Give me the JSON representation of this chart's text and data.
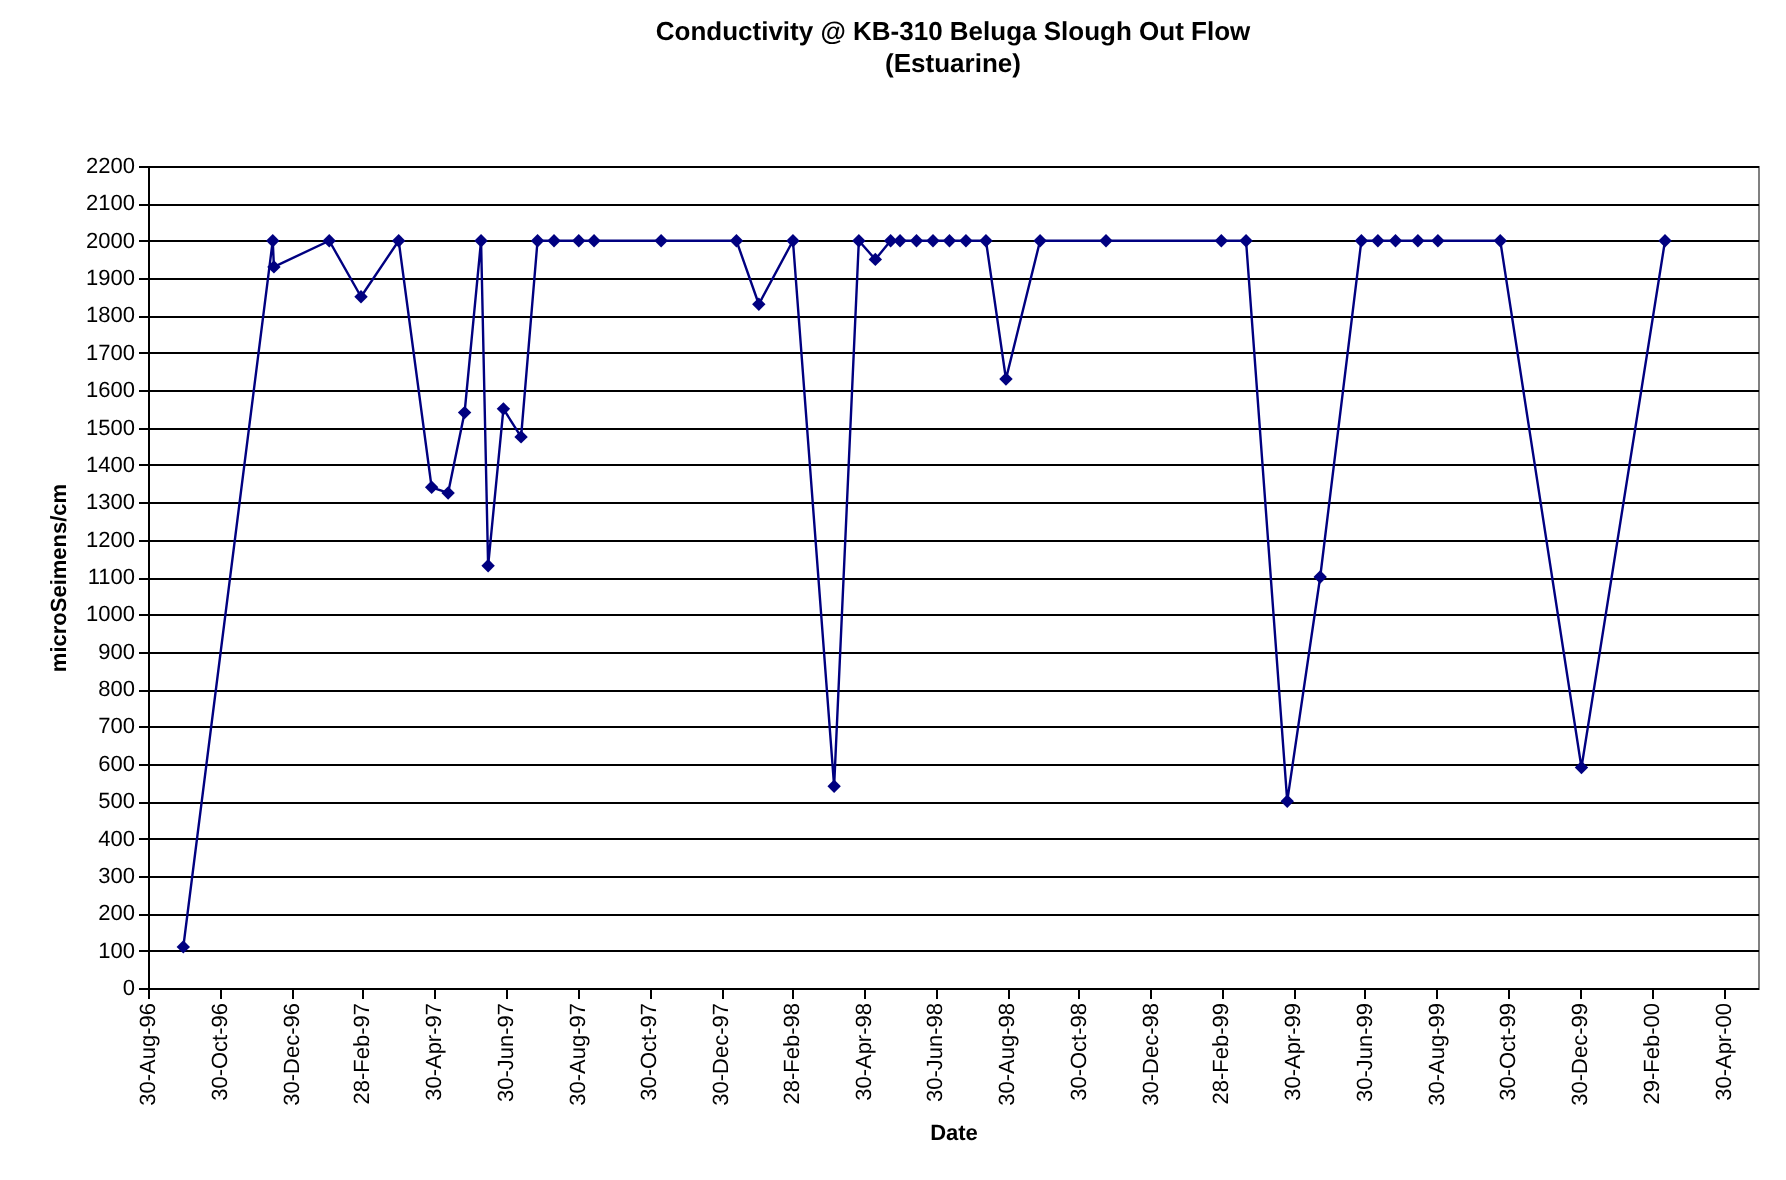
{
  "chart_data": {
    "type": "line",
    "title": "Conductivity @ KB-310 Beluga Slough Out Flow",
    "subtitle": "(Estuarine)",
    "xlabel": "Date",
    "ylabel": "microSeimens/cm",
    "x": [
      "1996-09-29",
      "1996-12-14",
      "1996-12-15",
      "1997-01-31",
      "1997-02-27",
      "1997-03-31",
      "1997-04-28",
      "1997-05-12",
      "1997-05-26",
      "1997-06-09",
      "1997-06-15",
      "1997-06-28",
      "1997-07-13",
      "1997-07-27",
      "1997-08-10",
      "1997-08-31",
      "1997-09-13",
      "1997-11-09",
      "1998-01-12",
      "1998-01-31",
      "1998-03-01",
      "1998-04-05",
      "1998-04-26",
      "1998-05-10",
      "1998-05-23",
      "1998-05-31",
      "1998-06-14",
      "1998-06-28",
      "1998-07-12",
      "1998-07-26",
      "1998-08-12",
      "1998-08-29",
      "1998-09-27",
      "1998-11-22",
      "1999-02-28",
      "1999-03-21",
      "1999-04-25",
      "1999-05-23",
      "1999-06-27",
      "1999-07-11",
      "1999-07-26",
      "1999-08-14",
      "1999-08-31",
      "1999-10-23",
      "1999-12-31",
      "2000-03-11"
    ],
    "series": [
      {
        "color": "#000080",
        "values": [
          110,
          2000,
          1930,
          2000,
          1850,
          2000,
          1340,
          1325,
          1540,
          2000,
          1130,
          1550,
          1475,
          2000,
          2000,
          2000,
          2000,
          2000,
          2000,
          1830,
          2000,
          540,
          2000,
          1950,
          2000,
          2000,
          2000,
          2000,
          2000,
          2000,
          2000,
          1630,
          2000,
          2000,
          2000,
          2000,
          500,
          1100,
          2000,
          2000,
          2000,
          2000,
          2000,
          2000,
          590,
          2000
        ]
      }
    ],
    "xlim": [
      "1996-08-30",
      "2000-05-29"
    ],
    "xticks": [
      {
        "value": "1996-08-30",
        "label": "30-Aug-96"
      },
      {
        "value": "1996-10-30",
        "label": "30-Oct-96"
      },
      {
        "value": "1996-12-30",
        "label": "30-Dec-96"
      },
      {
        "value": "1997-02-28",
        "label": "28-Feb-97"
      },
      {
        "value": "1997-04-30",
        "label": "30-Apr-97"
      },
      {
        "value": "1997-06-30",
        "label": "30-Jun-97"
      },
      {
        "value": "1997-08-30",
        "label": "30-Aug-97"
      },
      {
        "value": "1997-10-30",
        "label": "30-Oct-97"
      },
      {
        "value": "1997-12-30",
        "label": "30-Dec-97"
      },
      {
        "value": "1998-02-28",
        "label": "28-Feb-98"
      },
      {
        "value": "1998-04-30",
        "label": "30-Apr-98"
      },
      {
        "value": "1998-06-30",
        "label": "30-Jun-98"
      },
      {
        "value": "1998-08-30",
        "label": "30-Aug-98"
      },
      {
        "value": "1998-10-30",
        "label": "30-Oct-98"
      },
      {
        "value": "1998-12-30",
        "label": "30-Dec-98"
      },
      {
        "value": "1999-02-28",
        "label": "28-Feb-99"
      },
      {
        "value": "1999-04-30",
        "label": "30-Apr-99"
      },
      {
        "value": "1999-06-30",
        "label": "30-Jun-99"
      },
      {
        "value": "1999-08-30",
        "label": "30-Aug-99"
      },
      {
        "value": "1999-10-30",
        "label": "30-Oct-99"
      },
      {
        "value": "1999-12-30",
        "label": "30-Dec-99"
      },
      {
        "value": "2000-02-29",
        "label": "29-Feb-00"
      },
      {
        "value": "2000-04-30",
        "label": "30-Apr-00"
      }
    ],
    "ylim": [
      0,
      2200
    ],
    "yticks": [
      0,
      100,
      200,
      300,
      400,
      500,
      600,
      700,
      800,
      900,
      1000,
      1100,
      1200,
      1300,
      1400,
      1500,
      1600,
      1700,
      1800,
      1900,
      2000,
      2100,
      2200
    ],
    "grid": "y",
    "legend": false,
    "marker": "diamond",
    "line_style": "solid"
  }
}
